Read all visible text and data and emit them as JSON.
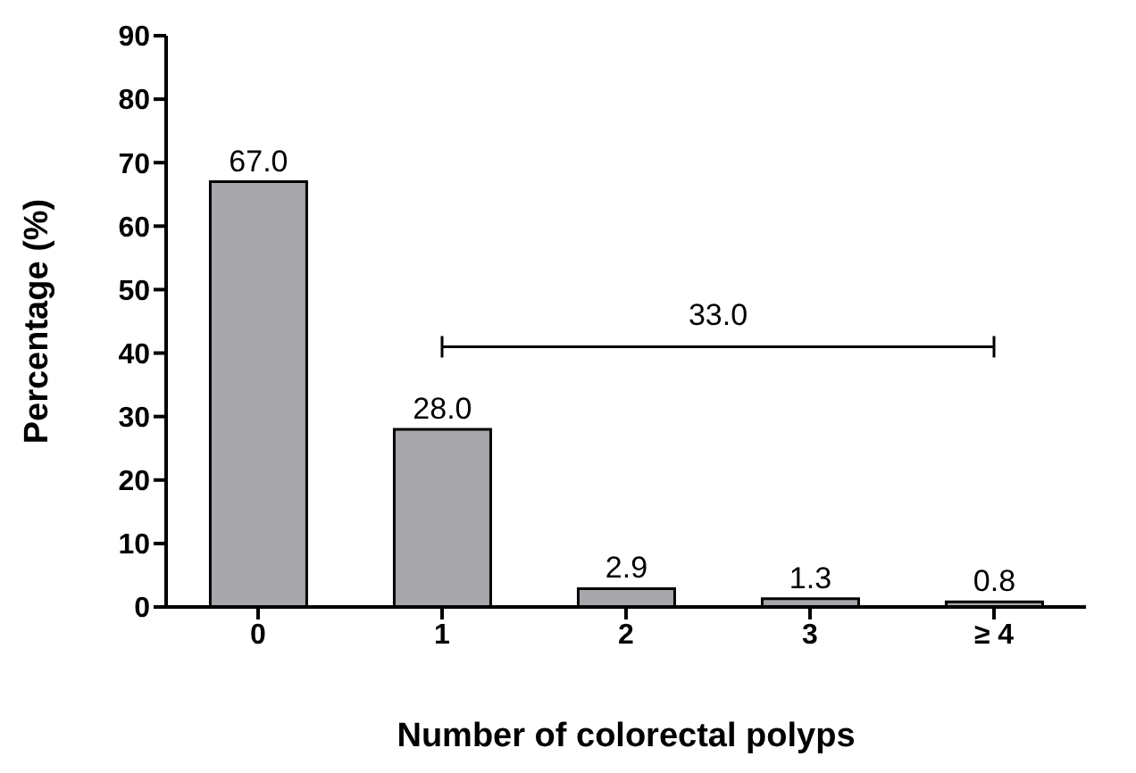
{
  "chart_data": {
    "type": "bar",
    "xlabel": "Number of colorectal polyps",
    "ylabel": "Percentage (%)",
    "categories": [
      "0",
      "1",
      "2",
      "3",
      "≥ 4"
    ],
    "values": [
      67.0,
      28.0,
      2.9,
      1.3,
      0.8
    ],
    "value_labels": [
      "67.0",
      "28.0",
      "2.9",
      "1.3",
      "0.8"
    ],
    "color": "#a7a6ab",
    "ylim": [
      0,
      90
    ],
    "yticks": [
      0,
      10,
      20,
      30,
      40,
      50,
      60,
      70,
      80,
      90
    ],
    "grid": false,
    "legend": false,
    "annotations": [
      "33.0"
    ]
  }
}
